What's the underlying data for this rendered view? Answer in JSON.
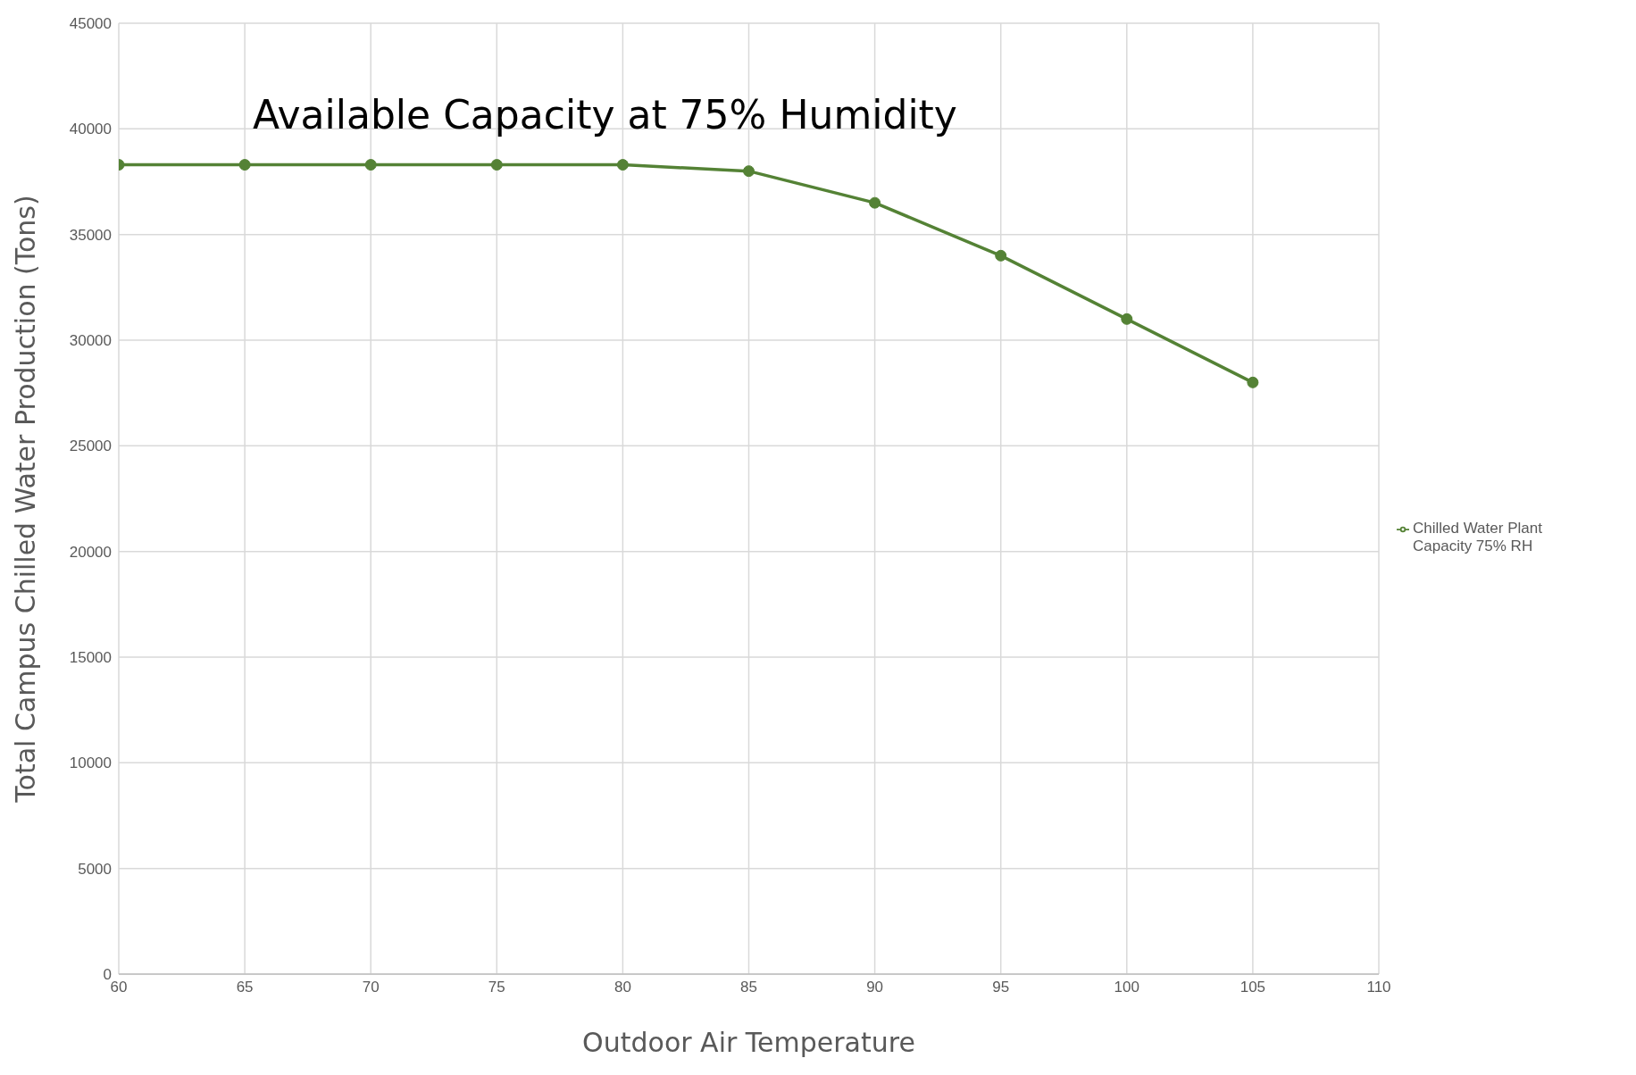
{
  "chart_data": {
    "type": "line",
    "title": "Available Capacity at 75% Humidity",
    "xlabel": "Outdoor Air Temperature",
    "ylabel": "Total Campus Chilled Water Production (Tons)",
    "x": [
      60,
      65,
      70,
      75,
      80,
      85,
      90,
      95,
      100,
      105
    ],
    "series": [
      {
        "name": "Chilled Water Plant Capacity 75% RH",
        "color": "#548235",
        "values": [
          38300,
          38300,
          38300,
          38300,
          38300,
          38000,
          36500,
          34000,
          31000,
          28000
        ]
      }
    ],
    "xlim": [
      60,
      110
    ],
    "xticks": [
      60,
      65,
      70,
      75,
      80,
      85,
      90,
      95,
      100,
      105,
      110
    ],
    "ylim": [
      0,
      45000
    ],
    "yticks": [
      0,
      5000,
      10000,
      15000,
      20000,
      25000,
      30000,
      35000,
      40000,
      45000
    ],
    "grid": true,
    "legend": "right",
    "marker": "circle",
    "line_style": "solid"
  }
}
